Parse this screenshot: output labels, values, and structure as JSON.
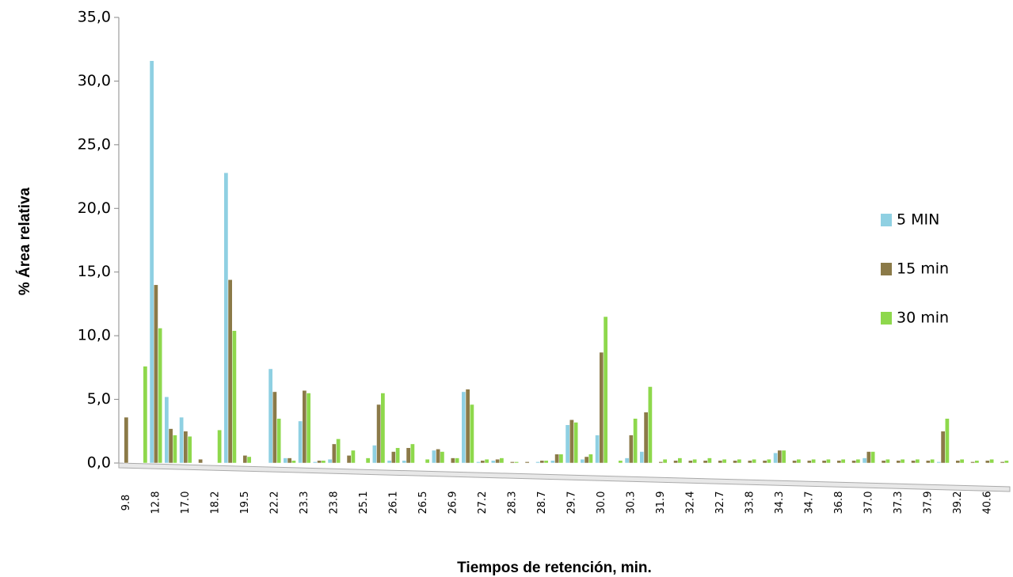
{
  "chart_data": {
    "type": "bar",
    "x_label": "Tiempos de retención, min.",
    "y_label": "% Área relativa",
    "categories": [
      "9.8",
      null,
      "12.8",
      null,
      "17.0",
      null,
      "18.2",
      null,
      "19.5",
      null,
      "22.2",
      null,
      "23.3",
      null,
      "23.8",
      null,
      "25.1",
      null,
      "26.1",
      null,
      "26.5",
      null,
      "26.9",
      null,
      "27.2",
      null,
      "28.3",
      null,
      "28.7",
      null,
      "29.7",
      null,
      "30.0",
      null,
      "30.3",
      null,
      "31.9",
      null,
      "32.4",
      null,
      "32.7",
      null,
      "33.8",
      null,
      "34.3",
      null,
      "34.7",
      null,
      "36.8",
      null,
      "37.0",
      null,
      "37.3",
      null,
      "37.9",
      null,
      "39.2",
      null,
      "40.6",
      null
    ],
    "series": [
      {
        "name": "5 MIN",
        "color": "#8fd0e2",
        "values": [
          0,
          0,
          31.6,
          5.2,
          3.6,
          0,
          0,
          22.8,
          0,
          0,
          7.4,
          0.4,
          3.3,
          0.1,
          0.3,
          0,
          0,
          1.4,
          0.2,
          0.2,
          0,
          1.0,
          0,
          5.6,
          0.1,
          0.2,
          0,
          0,
          0.1,
          0.2,
          3.0,
          0.3,
          2.2,
          0,
          0.4,
          0.9,
          0,
          0,
          0,
          0,
          0,
          0,
          0,
          0,
          0.8,
          0,
          0,
          0,
          0,
          0,
          0.4,
          0,
          0,
          0,
          0,
          0.1,
          0,
          0,
          0,
          0
        ]
      },
      {
        "name": "15 min",
        "color": "#8b7a48",
        "values": [
          3.6,
          0,
          14.0,
          2.7,
          2.5,
          0.3,
          0,
          14.4,
          0.6,
          0,
          5.6,
          0.4,
          5.7,
          0.2,
          1.5,
          0.6,
          0,
          4.6,
          0.9,
          1.2,
          0,
          1.1,
          0.4,
          5.8,
          0.2,
          0.3,
          0.1,
          0.1,
          0.2,
          0.7,
          3.4,
          0.5,
          8.7,
          0,
          2.2,
          4.0,
          0.1,
          0.2,
          0.2,
          0.2,
          0.2,
          0.2,
          0.2,
          0.2,
          1.0,
          0.2,
          0.2,
          0.2,
          0.2,
          0.2,
          0.9,
          0.2,
          0.2,
          0.2,
          0.2,
          2.5,
          0.2,
          0.1,
          0.2,
          0.1
        ]
      },
      {
        "name": "30 min",
        "color": "#8ed84c",
        "values": [
          0,
          7.6,
          10.6,
          2.2,
          2.1,
          0,
          2.6,
          10.4,
          0.5,
          0,
          3.5,
          0.2,
          5.5,
          0.2,
          1.9,
          1.0,
          0.4,
          5.5,
          1.2,
          1.5,
          0.3,
          0.9,
          0.4,
          4.6,
          0.3,
          0.4,
          0.1,
          0,
          0.2,
          0.7,
          3.2,
          0.7,
          11.5,
          0.2,
          3.5,
          6.0,
          0.3,
          0.4,
          0.3,
          0.4,
          0.3,
          0.3,
          0.3,
          0.3,
          1.0,
          0.3,
          0.3,
          0.3,
          0.3,
          0.3,
          0.9,
          0.3,
          0.3,
          0.3,
          0.3,
          3.5,
          0.3,
          0.2,
          0.3,
          0.2
        ]
      }
    ],
    "ylim": [
      0,
      35
    ],
    "yticks": [
      {
        "value": 0,
        "label": "0,0"
      },
      {
        "value": 5,
        "label": "5,0"
      },
      {
        "value": 10,
        "label": "10,0"
      },
      {
        "value": 15,
        "label": "15,0"
      },
      {
        "value": 20,
        "label": "20,0"
      },
      {
        "value": 25,
        "label": "25,0"
      },
      {
        "value": 30,
        "label": "30,0"
      },
      {
        "value": 35,
        "label": "35,0"
      }
    ],
    "legend": "right"
  }
}
